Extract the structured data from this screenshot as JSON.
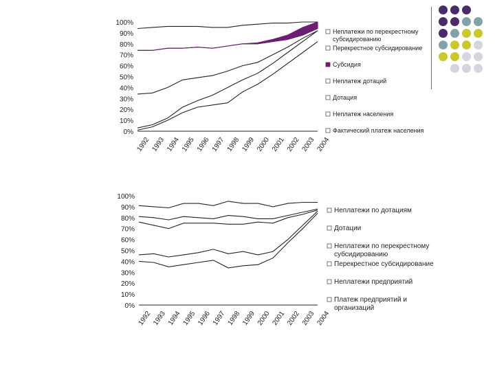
{
  "palette": {
    "purple": "#4b2a6b",
    "teal": "#7fa3a8",
    "olive": "#c9c92a",
    "gray": "#d3d6de",
    "subsidy_fill": "#6c1e72",
    "line": "#222222"
  },
  "decor": {
    "dots": [
      [
        "purple",
        "purple",
        "purple",
        null
      ],
      [
        "purple",
        "purple",
        "teal",
        "teal"
      ],
      [
        "purple",
        "teal",
        "olive",
        "olive"
      ],
      [
        "teal",
        "olive",
        "olive",
        "gray"
      ],
      [
        "olive",
        "olive",
        "gray",
        "gray"
      ],
      [
        null,
        "gray",
        "gray",
        "gray"
      ]
    ]
  },
  "chart_data": [
    {
      "type": "area",
      "years": [
        "1992",
        "1993",
        "1994",
        "1995",
        "1996",
        "1997",
        "1998",
        "1999",
        "2000",
        "2001",
        "2002",
        "2003",
        "2004"
      ],
      "y_ticks": [
        "0%",
        "10%",
        "20%",
        "30%",
        "40%",
        "50%",
        "60%",
        "70%",
        "80%",
        "90%",
        "100%"
      ],
      "ylim": [
        0,
        100
      ],
      "series": [
        {
          "name": "Неплатежи по перекрестному субсидированию",
          "style": "line",
          "values": [
            94,
            95,
            96,
            96,
            96,
            95,
            95,
            97,
            98,
            99,
            99,
            100,
            100
          ]
        },
        {
          "name": "Перекрестное субсидирование",
          "style": "line",
          "values": [
            74,
            74,
            76,
            76,
            77,
            76,
            78,
            80,
            80,
            82,
            84,
            88,
            94
          ]
        },
        {
          "name": "Субсидия",
          "style": "band",
          "values": [
            74,
            74,
            76,
            76,
            77,
            76,
            78,
            80,
            81,
            84,
            88,
            95,
            100
          ]
        },
        {
          "name": "Неплатеж дотаций",
          "style": "line",
          "values": [
            34,
            35,
            40,
            47,
            49,
            51,
            55,
            60,
            63,
            70,
            77,
            85,
            92
          ]
        },
        {
          "name": "Дотация",
          "style": "line",
          "values": [
            3,
            6,
            12,
            22,
            28,
            33,
            40,
            47,
            53,
            62,
            72,
            82,
            92
          ]
        },
        {
          "name": "Неплатеж населения",
          "style": "line",
          "values": [
            1,
            4,
            10,
            17,
            22,
            24,
            26,
            36,
            43,
            52,
            62,
            72,
            82
          ]
        },
        {
          "name": "Фактический платеж населения",
          "style": "line",
          "values": [
            0,
            0,
            0,
            0,
            0,
            0,
            0,
            0,
            0,
            0,
            0,
            0,
            0
          ]
        }
      ]
    },
    {
      "type": "area",
      "years": [
        "1992",
        "1993",
        "1994",
        "1995",
        "1996",
        "1997",
        "1998",
        "1999",
        "2000",
        "2001",
        "2002",
        "2003",
        "2004"
      ],
      "y_ticks": [
        "0%",
        "10%",
        "20%",
        "30%",
        "40%",
        "50%",
        "60%",
        "70%",
        "80%",
        "90%",
        "100%"
      ],
      "ylim": [
        0,
        100
      ],
      "series": [
        {
          "name": "Неплатежи по дотациям",
          "style": "line",
          "values": [
            91,
            90,
            89,
            93,
            93,
            91,
            95,
            93,
            93,
            90,
            93,
            94,
            94
          ]
        },
        {
          "name": "Дотации",
          "style": "line",
          "values": [
            81,
            80,
            78,
            81,
            80,
            79,
            82,
            81,
            79,
            79,
            82,
            85,
            88
          ]
        },
        {
          "name": "Неплатежи по перекрестному субсидированию",
          "style": "line",
          "values": [
            76,
            73,
            70,
            75,
            75,
            75,
            74,
            74,
            76,
            75,
            80,
            83,
            87
          ]
        },
        {
          "name": "Перекрестное субсидирование",
          "style": "line",
          "values": [
            46,
            47,
            44,
            46,
            48,
            51,
            47,
            49,
            46,
            49,
            60,
            73,
            86
          ]
        },
        {
          "name": "Неплатежи предприятий",
          "style": "line",
          "values": [
            40,
            39,
            35,
            37,
            39,
            41,
            34,
            36,
            37,
            43,
            57,
            70,
            84
          ]
        },
        {
          "name": "Платеж предприятий и организаций",
          "style": "line",
          "values": [
            0,
            0,
            0,
            0,
            0,
            0,
            0,
            0,
            0,
            0,
            0,
            0,
            0
          ]
        }
      ]
    }
  ]
}
